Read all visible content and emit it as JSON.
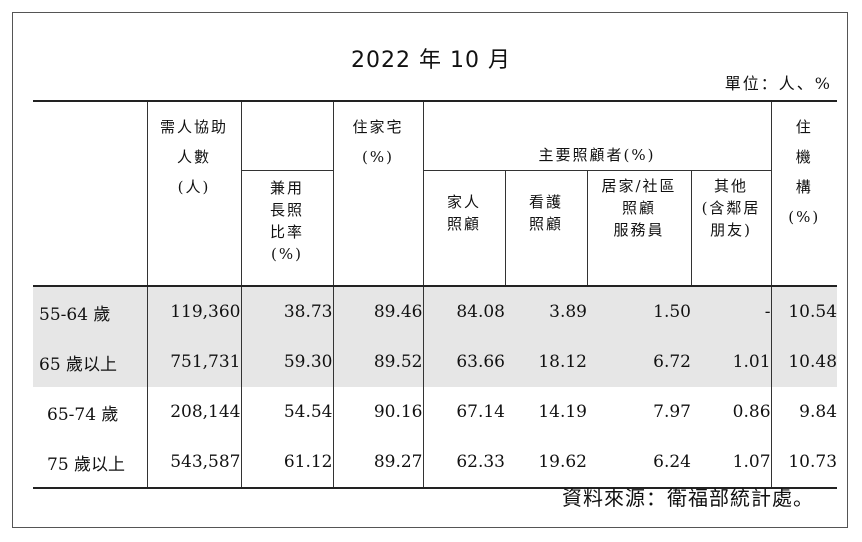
{
  "title": "2022 年 10 月",
  "unit": "單位：人、%",
  "source": "資料來源：衛福部統計處。",
  "headers": {
    "need_people_1": "需人協助",
    "need_people_2": "人數",
    "need_people_3": "(人)",
    "combined_1": "兼用",
    "combined_2": "長照",
    "combined_3": "比率",
    "combined_4": "(%)",
    "home_1": "住家宅",
    "home_2": "(%)",
    "main_carer": "主要照顧者(%)",
    "family_1": "家人",
    "family_2": "照顧",
    "nurse_1": "看護",
    "nurse_2": "照顧",
    "homecare_1": "居家/社區",
    "homecare_2": "照顧",
    "homecare_3": "服務員",
    "other_1": "其他",
    "other_2": "(含鄰居",
    "other_3": "朋友)",
    "inst_1": "住",
    "inst_2": "機",
    "inst_3": "構",
    "inst_4": "(%)"
  },
  "rows": [
    {
      "label": "55-64 歲",
      "people": "119,360",
      "combined": "38.73",
      "home": "89.46",
      "family": "84.08",
      "nurse": "3.89",
      "homecare": "1.50",
      "other": "-",
      "inst": "10.54"
    },
    {
      "label": "65 歲以上",
      "people": "751,731",
      "combined": "59.30",
      "home": "89.52",
      "family": "63.66",
      "nurse": "18.12",
      "homecare": "6.72",
      "other": "1.01",
      "inst": "10.48"
    },
    {
      "label": "65-74 歲",
      "people": "208,144",
      "combined": "54.54",
      "home": "90.16",
      "family": "67.14",
      "nurse": "14.19",
      "homecare": "7.97",
      "other": "0.86",
      "inst": "9.84"
    },
    {
      "label": "75 歲以上",
      "people": "543,587",
      "combined": "61.12",
      "home": "89.27",
      "family": "62.33",
      "nurse": "19.62",
      "homecare": "6.24",
      "other": "1.07",
      "inst": "10.73"
    }
  ]
}
